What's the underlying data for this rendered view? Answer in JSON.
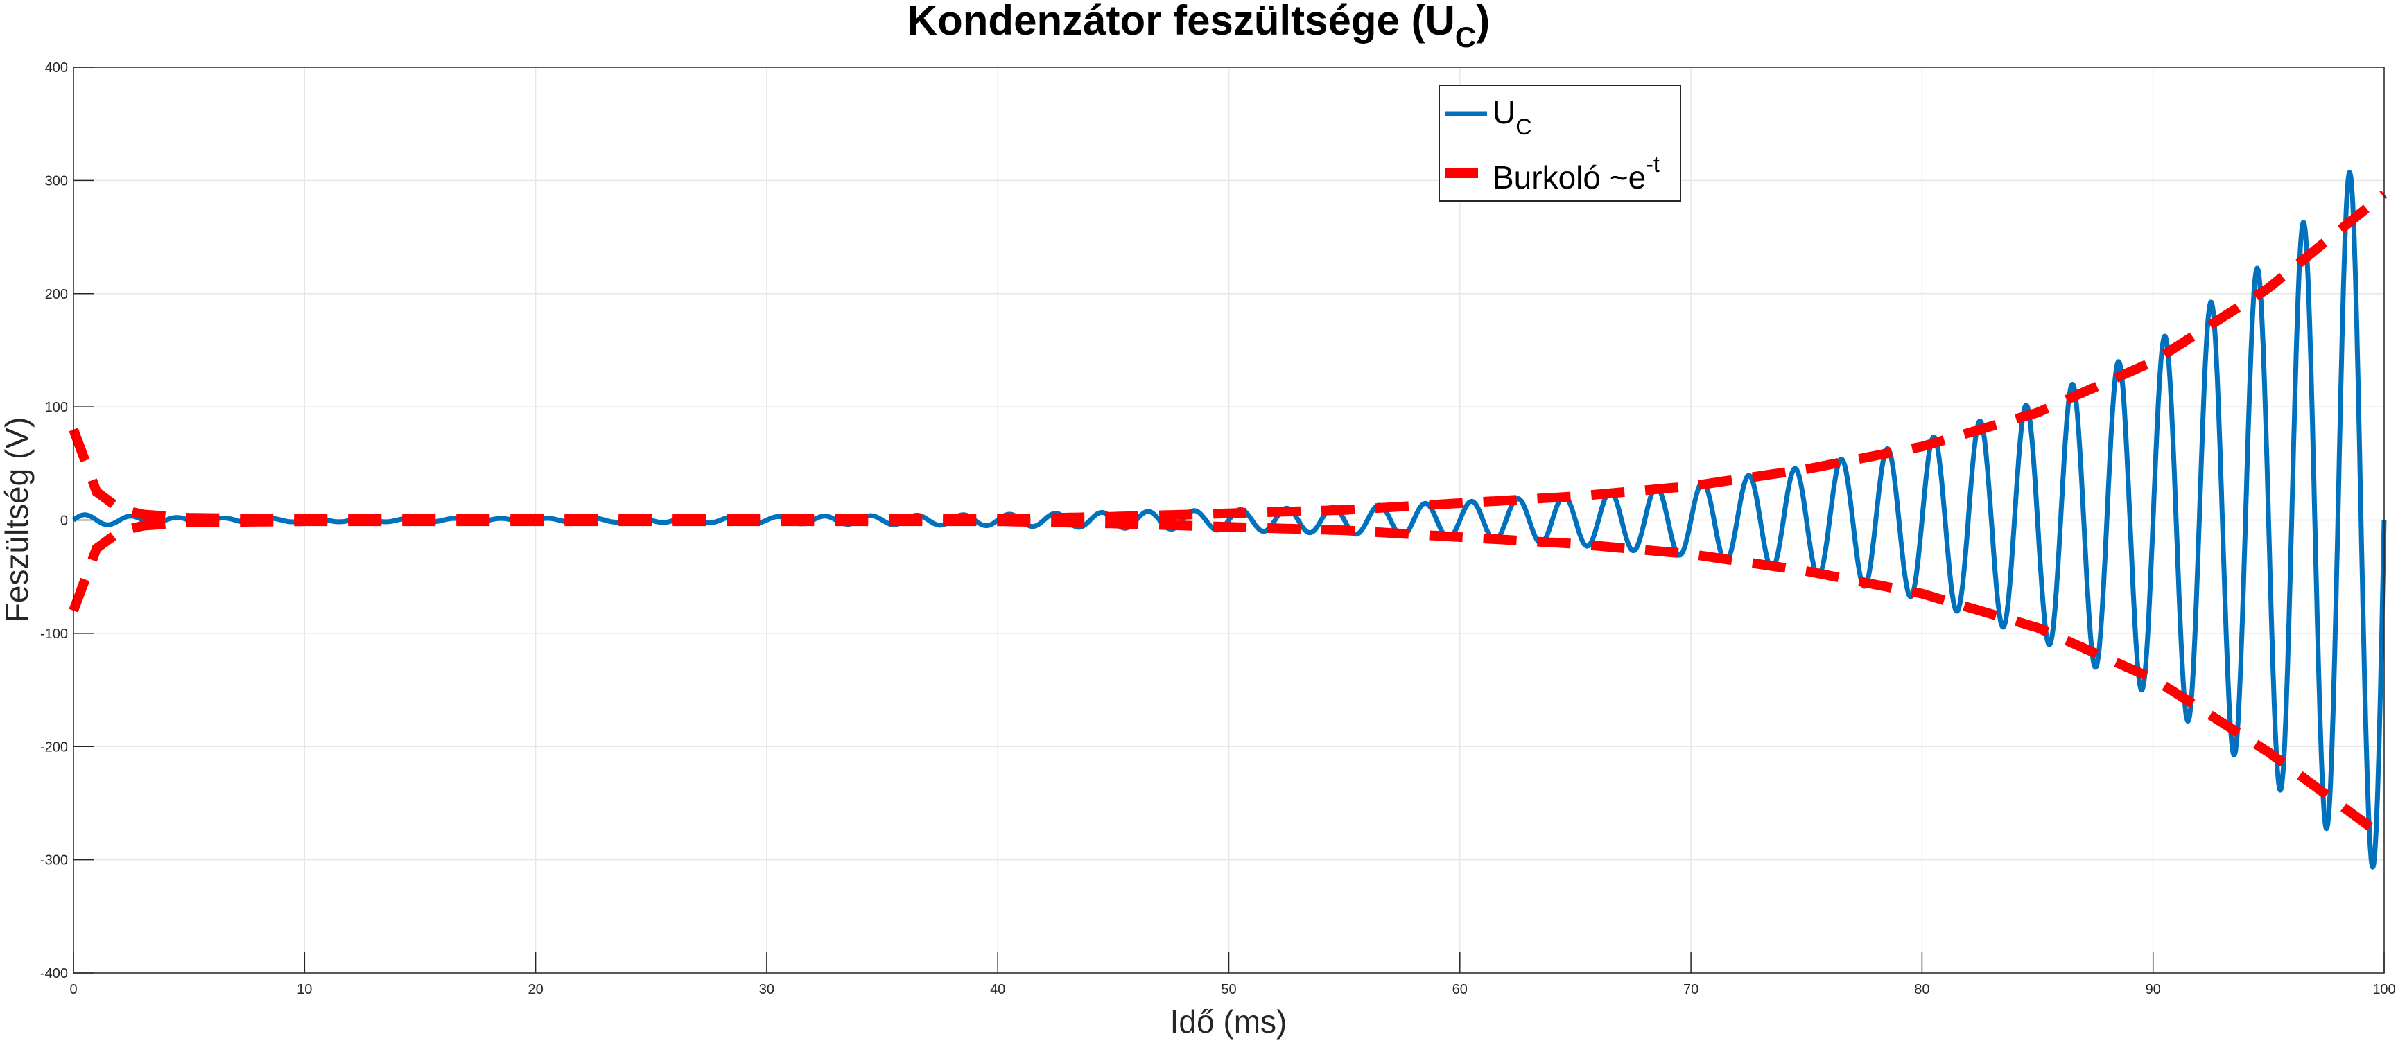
{
  "chart_data": {
    "type": "line",
    "title": "Kondenzátor feszültsége (U",
    "title_subscript": "C",
    "title_suffix": ")",
    "xlabel": "Idő (ms)",
    "ylabel": "Feszültség (V)",
    "xlim": [
      0,
      100
    ],
    "ylim": [
      -400,
      400
    ],
    "x_ticks": [
      "0",
      "10",
      "20",
      "30",
      "40",
      "50",
      "60",
      "70",
      "80",
      "90",
      "100"
    ],
    "y_ticks": [
      "400",
      "300",
      "200",
      "100",
      "0",
      "-100",
      "-200",
      "-300",
      "-400"
    ],
    "grid": true,
    "legend_position": "top-right",
    "legend": [
      {
        "label": "U",
        "label_subscript": "C"
      },
      {
        "label": "Burkoló ~e",
        "label_superscript": "-t"
      }
    ],
    "series": [
      {
        "name": "UC",
        "color": "#0072BD",
        "style": "solid",
        "period_ms": 2.0,
        "x": [
          0,
          5,
          10,
          15,
          20,
          25,
          30,
          35,
          40,
          45,
          50,
          55,
          60,
          65,
          70,
          75,
          80,
          85,
          90,
          95,
          100
        ],
        "y_peak": [
          5,
          2,
          1.5,
          1.5,
          1.5,
          2,
          3,
          4,
          5,
          7,
          9,
          12,
          16,
          22,
          32,
          47,
          70,
          105,
          155,
          230,
          340
        ],
        "y_trough": [
          -5,
          -2,
          -1.5,
          -1.5,
          -1.5,
          -2,
          -3,
          -4,
          -5,
          -7,
          -9,
          -12,
          -16,
          -22,
          -32,
          -47,
          -70,
          -105,
          -155,
          -230,
          -315
        ]
      },
      {
        "name": "Burkoló ~e^-t",
        "color": "#FF0000",
        "style": "dashed",
        "x": [
          0,
          1,
          2,
          3,
          5,
          10,
          20,
          30,
          40,
          45,
          50,
          55,
          60,
          65,
          70,
          75,
          80,
          85,
          90,
          95,
          100
        ],
        "y_upper": [
          80,
          25,
          10,
          5,
          2,
          1,
          1,
          1,
          1,
          3,
          6,
          9,
          15,
          21,
          30,
          45,
          65,
          95,
          140,
          205,
          288
        ],
        "y_lower": [
          -80,
          -25,
          -10,
          -5,
          -2,
          -1,
          -1,
          -1,
          -1,
          -3,
          -6,
          -9,
          -15,
          -21,
          -30,
          -45,
          -65,
          -95,
          -140,
          -205,
          -280
        ]
      }
    ]
  }
}
